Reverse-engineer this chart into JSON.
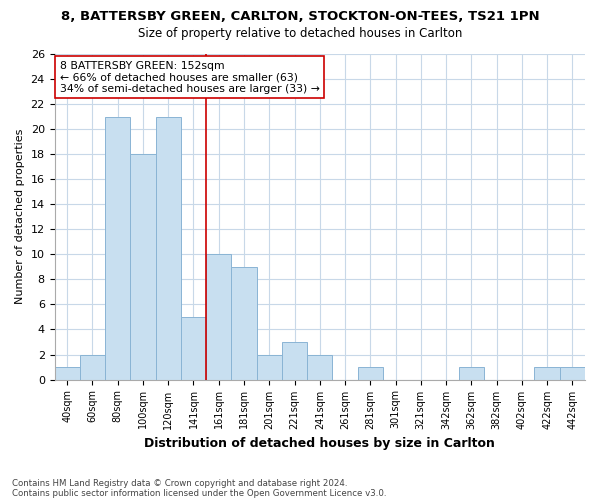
{
  "title": "8, BATTERSBY GREEN, CARLTON, STOCKTON-ON-TEES, TS21 1PN",
  "subtitle": "Size of property relative to detached houses in Carlton",
  "xlabel": "Distribution of detached houses by size in Carlton",
  "ylabel": "Number of detached properties",
  "bar_color": "#c8dff0",
  "bar_edge_color": "#8ab4d4",
  "bins": [
    "40sqm",
    "60sqm",
    "80sqm",
    "100sqm",
    "120sqm",
    "141sqm",
    "161sqm",
    "181sqm",
    "201sqm",
    "221sqm",
    "241sqm",
    "261sqm",
    "281sqm",
    "301sqm",
    "321sqm",
    "342sqm",
    "362sqm",
    "382sqm",
    "402sqm",
    "422sqm",
    "442sqm"
  ],
  "values": [
    1,
    2,
    21,
    18,
    21,
    5,
    10,
    9,
    2,
    3,
    2,
    0,
    1,
    0,
    0,
    0,
    1,
    0,
    0,
    1,
    1
  ],
  "ylim": [
    0,
    26
  ],
  "yticks": [
    0,
    2,
    4,
    6,
    8,
    10,
    12,
    14,
    16,
    18,
    20,
    22,
    24,
    26
  ],
  "annotation_title": "8 BATTERSBY GREEN: 152sqm",
  "annotation_line1": "← 66% of detached houses are smaller (63)",
  "annotation_line2": "34% of semi-detached houses are larger (33) →",
  "vline_color": "#cc0000",
  "annotation_box_color": "#ffffff",
  "annotation_box_edge": "#cc0000",
  "footer_line1": "Contains HM Land Registry data © Crown copyright and database right 2024.",
  "footer_line2": "Contains public sector information licensed under the Open Government Licence v3.0.",
  "grid_color": "#c8d8e8",
  "background_color": "#ffffff"
}
